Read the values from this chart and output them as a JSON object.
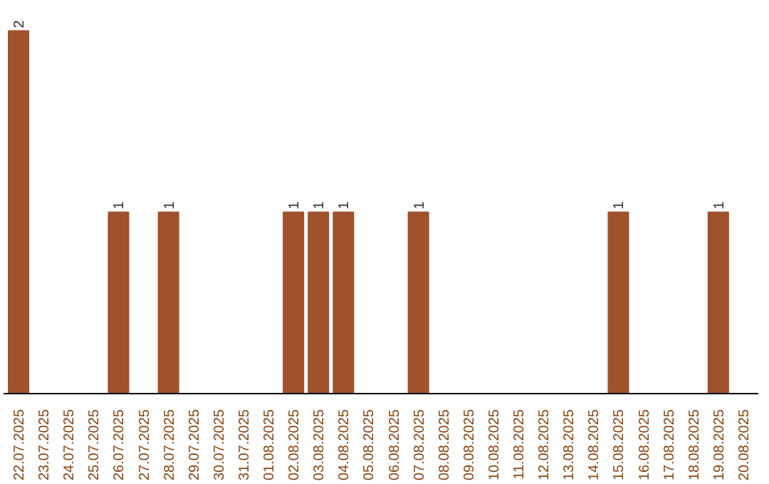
{
  "chart_data": {
    "type": "bar",
    "categories": [
      "22.07.2025",
      "23.07.2025",
      "24.07.2025",
      "25.07.2025",
      "26.07.2025",
      "27.07.2025",
      "28.07.2025",
      "29.07.2025",
      "30.07.2025",
      "31.07.2025",
      "01.08.2025",
      "02.08.2025",
      "03.08.2025",
      "04.08.2025",
      "05.08.2025",
      "06.08.2025",
      "07.08.2025",
      "08.08.2025",
      "09.08.2025",
      "10.08.2025",
      "11.08.2025",
      "12.08.2025",
      "13.08.2025",
      "14.08.2025",
      "15.08.2025",
      "16.08.2025",
      "17.08.2025",
      "18.08.2025",
      "19.08.2025",
      "20.08.2025"
    ],
    "values": [
      2,
      0,
      0,
      0,
      1,
      0,
      1,
      0,
      0,
      0,
      0,
      1,
      1,
      1,
      0,
      0,
      1,
      0,
      0,
      0,
      0,
      0,
      0,
      0,
      1,
      0,
      0,
      0,
      1,
      0
    ],
    "value_labels": [
      "2",
      null,
      null,
      null,
      "1",
      null,
      "1",
      null,
      null,
      null,
      null,
      "1",
      "1",
      "1",
      null,
      null,
      "1",
      null,
      null,
      null,
      null,
      null,
      null,
      null,
      "1",
      null,
      null,
      null,
      "1",
      null
    ],
    "color": "#a0522d",
    "grid": false
  }
}
